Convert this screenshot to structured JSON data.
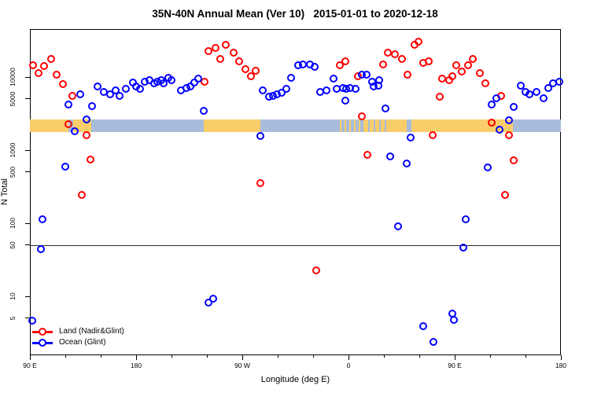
{
  "title": "35N-40N Annual Mean (Ver 10)   2015-01-01 to 2020-12-18",
  "chart_data": {
    "type": "scatter",
    "title": "35N-40N Annual Mean (Ver 10)   2015-01-01 to 2020-12-18",
    "xlabel": "Longitude (deg E)",
    "ylabel": "N Total",
    "x_axis": {
      "range_deg": [
        90,
        540
      ],
      "major_ticks": [
        {
          "deg": 90,
          "label": "90 E"
        },
        {
          "deg": 180,
          "label": "180"
        },
        {
          "deg": 270,
          "label": "90 W"
        },
        {
          "deg": 360,
          "label": "0"
        },
        {
          "deg": 450,
          "label": "90 E"
        },
        {
          "deg": 540,
          "label": "180"
        }
      ],
      "minor_ticks_deg": [
        120,
        150,
        210,
        240,
        300,
        330,
        390,
        420,
        480,
        510
      ]
    },
    "y_axis": {
      "scale": "log",
      "ticks": [
        5,
        10,
        50,
        100,
        500,
        1000,
        5000,
        10000
      ],
      "range": [
        1.6,
        45000
      ]
    },
    "reference_line_y": 50,
    "grid": "off",
    "legend_position": "bottom-left",
    "series": [
      {
        "name": "Land (Nadir&Glint)",
        "color": "#ff0000",
        "points": [
          {
            "lon": 92.5,
            "n": 14400
          },
          {
            "lon": 97,
            "n": 11200
          },
          {
            "lon": 102,
            "n": 14100
          },
          {
            "lon": 108,
            "n": 17700
          },
          {
            "lon": 112.5,
            "n": 10800
          },
          {
            "lon": 118,
            "n": 8050
          },
          {
            "lon": 122.5,
            "n": 2260
          },
          {
            "lon": 126,
            "n": 5560
          },
          {
            "lon": 134,
            "n": 242
          },
          {
            "lon": 138,
            "n": 1610
          },
          {
            "lon": 141,
            "n": 736
          },
          {
            "lon": 238,
            "n": 8700
          },
          {
            "lon": 241.5,
            "n": 22600
          },
          {
            "lon": 247,
            "n": 24800
          },
          {
            "lon": 251.5,
            "n": 17700
          },
          {
            "lon": 256,
            "n": 27900
          },
          {
            "lon": 262.5,
            "n": 21500
          },
          {
            "lon": 267,
            "n": 16300
          },
          {
            "lon": 272.5,
            "n": 12700
          },
          {
            "lon": 277,
            "n": 10300
          },
          {
            "lon": 281.5,
            "n": 12200
          },
          {
            "lon": 285,
            "n": 356
          },
          {
            "lon": 332.5,
            "n": 22.5
          },
          {
            "lon": 352.5,
            "n": 14400
          },
          {
            "lon": 357,
            "n": 16300
          },
          {
            "lon": 368,
            "n": 10300
          },
          {
            "lon": 371.5,
            "n": 2900
          },
          {
            "lon": 376,
            "n": 870
          },
          {
            "lon": 389,
            "n": 15000
          },
          {
            "lon": 393.5,
            "n": 21500
          },
          {
            "lon": 399,
            "n": 20600
          },
          {
            "lon": 405,
            "n": 17700
          },
          {
            "lon": 410,
            "n": 10750
          },
          {
            "lon": 416,
            "n": 27900
          },
          {
            "lon": 419,
            "n": 30200
          },
          {
            "lon": 423.5,
            "n": 15800
          },
          {
            "lon": 428,
            "n": 16300
          },
          {
            "lon": 431.5,
            "n": 1610
          },
          {
            "lon": 437,
            "n": 5330
          },
          {
            "lon": 439,
            "n": 9550
          },
          {
            "lon": 445,
            "n": 9120
          },
          {
            "lon": 448,
            "n": 10300
          },
          {
            "lon": 451.5,
            "n": 14400
          },
          {
            "lon": 456,
            "n": 11800
          },
          {
            "lon": 461.5,
            "n": 14400
          },
          {
            "lon": 465,
            "n": 17700
          },
          {
            "lon": 471.5,
            "n": 11200
          },
          {
            "lon": 476,
            "n": 8110
          },
          {
            "lon": 481.5,
            "n": 2350
          },
          {
            "lon": 489,
            "n": 5560
          },
          {
            "lon": 492.5,
            "n": 242
          },
          {
            "lon": 496,
            "n": 1610
          },
          {
            "lon": 500,
            "n": 728
          }
        ]
      },
      {
        "name": "Ocean (Glint)",
        "color": "#0000ff",
        "points": [
          {
            "lon": 91.8,
            "n": 4.6
          },
          {
            "lon": 99.5,
            "n": 44
          },
          {
            "lon": 100.5,
            "n": 113
          },
          {
            "lon": 120,
            "n": 590
          },
          {
            "lon": 122.5,
            "n": 4170
          },
          {
            "lon": 128,
            "n": 1830
          },
          {
            "lon": 132.5,
            "n": 5800
          },
          {
            "lon": 138,
            "n": 2650
          },
          {
            "lon": 142.5,
            "n": 4000
          },
          {
            "lon": 147,
            "n": 7420
          },
          {
            "lon": 152.5,
            "n": 6310
          },
          {
            "lon": 158,
            "n": 5800
          },
          {
            "lon": 162.5,
            "n": 6570
          },
          {
            "lon": 166,
            "n": 5560
          },
          {
            "lon": 171.5,
            "n": 6840
          },
          {
            "lon": 177,
            "n": 8410
          },
          {
            "lon": 180,
            "n": 7420
          },
          {
            "lon": 183.5,
            "n": 6840
          },
          {
            "lon": 187,
            "n": 8700
          },
          {
            "lon": 191.5,
            "n": 9120
          },
          {
            "lon": 195,
            "n": 8110
          },
          {
            "lon": 198,
            "n": 8700
          },
          {
            "lon": 201.5,
            "n": 9120
          },
          {
            "lon": 203.5,
            "n": 8110
          },
          {
            "lon": 207,
            "n": 9870
          },
          {
            "lon": 210,
            "n": 9120
          },
          {
            "lon": 218,
            "n": 6570
          },
          {
            "lon": 222.5,
            "n": 7130
          },
          {
            "lon": 226,
            "n": 7420
          },
          {
            "lon": 229,
            "n": 8410
          },
          {
            "lon": 232.5,
            "n": 9550
          },
          {
            "lon": 237,
            "n": 3480
          },
          {
            "lon": 241,
            "n": 8.2
          },
          {
            "lon": 245.5,
            "n": 9.3
          },
          {
            "lon": 285,
            "n": 1560
          },
          {
            "lon": 287,
            "n": 6570
          },
          {
            "lon": 292.5,
            "n": 5330
          },
          {
            "lon": 296,
            "n": 5560
          },
          {
            "lon": 299,
            "n": 5800
          },
          {
            "lon": 303.5,
            "n": 6050
          },
          {
            "lon": 307,
            "n": 6840
          },
          {
            "lon": 311.5,
            "n": 9870
          },
          {
            "lon": 317,
            "n": 14400
          },
          {
            "lon": 321.5,
            "n": 15000
          },
          {
            "lon": 327,
            "n": 15000
          },
          {
            "lon": 331.5,
            "n": 13800
          },
          {
            "lon": 336,
            "n": 6320
          },
          {
            "lon": 341.5,
            "n": 6570
          },
          {
            "lon": 347,
            "n": 9550
          },
          {
            "lon": 350,
            "n": 6840
          },
          {
            "lon": 355,
            "n": 7130
          },
          {
            "lon": 357,
            "n": 4710
          },
          {
            "lon": 358,
            "n": 6840
          },
          {
            "lon": 361.5,
            "n": 7130
          },
          {
            "lon": 366,
            "n": 6840
          },
          {
            "lon": 371.5,
            "n": 10750
          },
          {
            "lon": 375,
            "n": 10750
          },
          {
            "lon": 380,
            "n": 8700
          },
          {
            "lon": 381.5,
            "n": 7420
          },
          {
            "lon": 385,
            "n": 7700
          },
          {
            "lon": 386,
            "n": 9120
          },
          {
            "lon": 391.5,
            "n": 3710
          },
          {
            "lon": 395,
            "n": 817
          },
          {
            "lon": 402,
            "n": 90
          },
          {
            "lon": 409,
            "n": 662
          },
          {
            "lon": 412.5,
            "n": 1470
          },
          {
            "lon": 423,
            "n": 3.9
          },
          {
            "lon": 432,
            "n": 2.4
          },
          {
            "lon": 448,
            "n": 5.8
          },
          {
            "lon": 449.5,
            "n": 4.7
          },
          {
            "lon": 457.5,
            "n": 46
          },
          {
            "lon": 459,
            "n": 113
          },
          {
            "lon": 478,
            "n": 584
          },
          {
            "lon": 481.5,
            "n": 4170
          },
          {
            "lon": 485,
            "n": 5070
          },
          {
            "lon": 488,
            "n": 1890
          },
          {
            "lon": 496,
            "n": 2590
          },
          {
            "lon": 500,
            "n": 3930
          },
          {
            "lon": 506,
            "n": 7700
          },
          {
            "lon": 510,
            "n": 6320
          },
          {
            "lon": 513.5,
            "n": 5800
          },
          {
            "lon": 519,
            "n": 6320
          },
          {
            "lon": 525,
            "n": 5070
          },
          {
            "lon": 529,
            "n": 7130
          },
          {
            "lon": 533.5,
            "n": 8110
          },
          {
            "lon": 538.5,
            "n": 8700
          }
        ]
      }
    ],
    "surface_band": {
      "description": "land/ocean surface-type strip along longitude",
      "land_color": "#facd6b",
      "ocean_color": "#a8bcdc",
      "value_center": 2150,
      "segments": [
        {
          "from": 90,
          "to": 122.5,
          "type": "land"
        },
        {
          "from": 122.5,
          "to": 126.5,
          "type": "ocean"
        },
        {
          "from": 126.5,
          "to": 142,
          "type": "land"
        },
        {
          "from": 142,
          "to": 237,
          "type": "ocean"
        },
        {
          "from": 237,
          "to": 285,
          "type": "land"
        },
        {
          "from": 285,
          "to": 350,
          "type": "ocean"
        },
        {
          "from": 350,
          "to": 373,
          "type": "mix-ocean"
        },
        {
          "from": 373,
          "to": 395,
          "type": "mix-land"
        },
        {
          "from": 395,
          "to": 409,
          "type": "land"
        },
        {
          "from": 409,
          "to": 413.5,
          "type": "ocean"
        },
        {
          "from": 413.5,
          "to": 499,
          "type": "land"
        },
        {
          "from": 499,
          "to": 540,
          "type": "ocean"
        }
      ]
    }
  },
  "legend": {
    "land_label": "Land (Nadir&Glint)",
    "ocean_label": "Ocean (Glint)"
  }
}
